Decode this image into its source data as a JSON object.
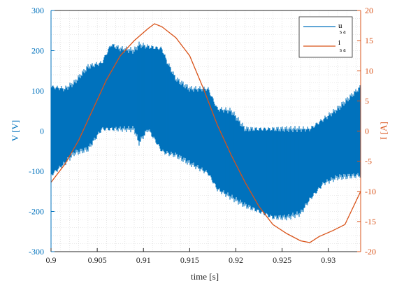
{
  "chart_data": {
    "type": "line",
    "xlabel": "time [s]",
    "ylabel_left": "V [V]",
    "ylabel_right": "I [A]",
    "xlim": [
      0.9,
      0.9335
    ],
    "ylim_left": [
      -300,
      300
    ],
    "ylim_right": [
      -20,
      20
    ],
    "x_ticks": [
      "0.9",
      "0.905",
      "0.91",
      "0.915",
      "0.92",
      "0.925",
      "0.93"
    ],
    "x_tick_values": [
      0.9,
      0.905,
      0.91,
      0.915,
      0.92,
      0.925,
      0.93
    ],
    "y_left_ticks": [
      "300",
      "200",
      "100",
      "0",
      "-100",
      "-200",
      "-300"
    ],
    "y_left_tick_values": [
      300,
      200,
      100,
      0,
      -100,
      -200,
      -300
    ],
    "y_right_ticks": [
      "20",
      "15",
      "10",
      "5",
      "0",
      "-5",
      "-10",
      "-15",
      "-20"
    ],
    "y_right_tick_values": [
      20,
      15,
      10,
      5,
      0,
      -5,
      -10,
      -15,
      -20
    ],
    "grid": "minor-dotted",
    "legend_position": "top-right",
    "colors": {
      "u": "#0072BD",
      "i": "#D95319",
      "axis": "#262626"
    },
    "series": [
      {
        "name": "u_sa",
        "legend_main": "u",
        "legend_sub": "s a",
        "axis": "left",
        "style": "pwm-band",
        "envelope": {
          "x": [
            0.9,
            0.9015,
            0.9025,
            0.904,
            0.9055,
            0.9065,
            0.9075,
            0.909,
            0.9095,
            0.9105,
            0.912,
            0.9125,
            0.9135,
            0.915,
            0.917,
            0.918,
            0.9195,
            0.921,
            0.9225,
            0.924,
            0.9255,
            0.927,
            0.928,
            0.9295,
            0.931,
            0.9335
          ],
          "upper": [
            110,
            105,
            120,
            160,
            170,
            215,
            205,
            200,
            215,
            210,
            205,
            175,
            130,
            105,
            105,
            55,
            50,
            5,
            5,
            5,
            5,
            5,
            5,
            30,
            55,
            110
          ],
          "lower": [
            -110,
            -80,
            -55,
            -45,
            5,
            5,
            5,
            5,
            -30,
            5,
            -50,
            -55,
            -60,
            -80,
            -105,
            -145,
            -165,
            -185,
            -200,
            -215,
            -215,
            -205,
            -170,
            -130,
            -115,
            -110
          ]
        }
      },
      {
        "name": "i_sa",
        "legend_main": "i",
        "legend_sub": "s a",
        "axis": "right",
        "style": "line",
        "x": [
          0.9,
          0.9015,
          0.903,
          0.9045,
          0.906,
          0.9075,
          0.909,
          0.9105,
          0.9112,
          0.912,
          0.9135,
          0.915,
          0.9165,
          0.918,
          0.9195,
          0.921,
          0.9225,
          0.924,
          0.9255,
          0.927,
          0.928,
          0.929,
          0.9305,
          0.9318,
          0.9335
        ],
        "y": [
          -8.5,
          -5.5,
          -1.5,
          3.5,
          8.5,
          12.5,
          15.0,
          17.0,
          17.8,
          17.3,
          15.5,
          12.5,
          7.0,
          1.0,
          -4.0,
          -8.5,
          -12.5,
          -15.5,
          -17.0,
          -18.2,
          -18.5,
          -17.5,
          -16.5,
          -15.5,
          -10.0
        ]
      }
    ]
  }
}
